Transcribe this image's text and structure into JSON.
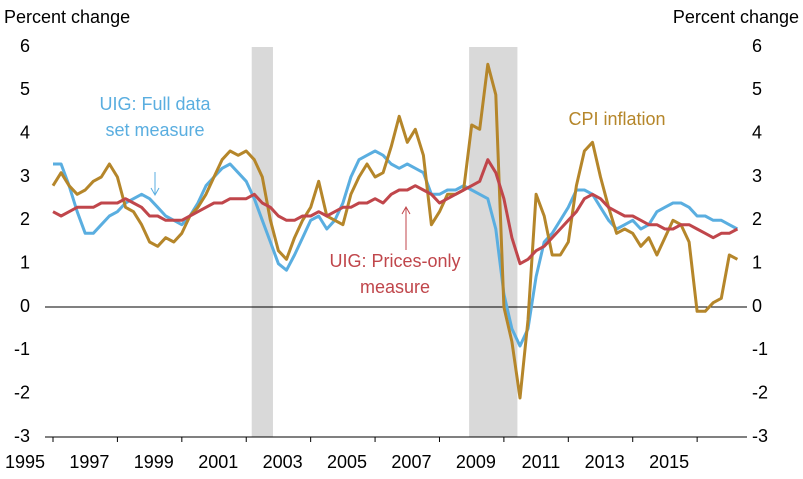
{
  "chart_data": {
    "type": "line",
    "y_axis_label": "Percent change",
    "y2_axis_label": "Percent change",
    "x": [
      1995,
      1995.25,
      1995.5,
      1995.75,
      1996,
      1996.25,
      1996.5,
      1996.75,
      1997,
      1997.25,
      1997.5,
      1997.75,
      1998,
      1998.25,
      1998.5,
      1998.75,
      1999,
      1999.25,
      1999.5,
      1999.75,
      2000,
      2000.25,
      2000.5,
      2000.75,
      2001,
      2001.25,
      2001.5,
      2001.75,
      2002,
      2002.25,
      2002.5,
      2002.75,
      2003,
      2003.25,
      2003.5,
      2003.75,
      2004,
      2004.25,
      2004.5,
      2004.75,
      2005,
      2005.25,
      2005.5,
      2005.75,
      2006,
      2006.25,
      2006.5,
      2006.75,
      2007,
      2007.25,
      2007.5,
      2007.75,
      2008,
      2008.25,
      2008.5,
      2008.75,
      2009,
      2009.25,
      2009.5,
      2009.75,
      2010,
      2010.25,
      2010.5,
      2010.75,
      2011,
      2011.25,
      2011.5,
      2011.75,
      2012,
      2012.25,
      2012.5,
      2012.75,
      2013,
      2013.25,
      2013.5,
      2013.75,
      2014,
      2014.25,
      2014.5,
      2014.75,
      2015,
      2015.25,
      2015.5,
      2015.75,
      2016,
      2016.25
    ],
    "series": [
      {
        "name": "UIG: Full data set measure",
        "color": "#5aaee0",
        "values": [
          3.3,
          3.3,
          2.8,
          2.2,
          1.7,
          1.7,
          1.9,
          2.1,
          2.2,
          2.4,
          2.5,
          2.6,
          2.5,
          2.3,
          2.1,
          2.0,
          1.9,
          2.1,
          2.4,
          2.8,
          3.0,
          3.2,
          3.3,
          3.1,
          2.9,
          2.5,
          2.0,
          1.5,
          1.0,
          0.85,
          1.2,
          1.6,
          2.0,
          2.1,
          1.8,
          2.0,
          2.4,
          3.0,
          3.4,
          3.5,
          3.6,
          3.5,
          3.3,
          3.2,
          3.3,
          3.2,
          3.1,
          2.6,
          2.6,
          2.7,
          2.7,
          2.8,
          2.7,
          2.6,
          2.5,
          1.8,
          0.3,
          -0.5,
          -0.9,
          -0.5,
          0.7,
          1.5,
          1.7,
          2.0,
          2.3,
          2.7,
          2.7,
          2.6,
          2.3,
          2.0,
          1.8,
          1.9,
          2.0,
          1.8,
          1.9,
          2.2,
          2.3,
          2.4,
          2.4,
          2.3,
          2.1,
          2.1,
          2.0,
          2.0,
          1.9,
          1.8
        ]
      },
      {
        "name": "UIG: Prices-only measure",
        "color": "#c0464b",
        "values": [
          2.2,
          2.1,
          2.2,
          2.3,
          2.3,
          2.3,
          2.4,
          2.4,
          2.4,
          2.5,
          2.4,
          2.3,
          2.1,
          2.1,
          2.0,
          2.0,
          2.0,
          2.1,
          2.2,
          2.3,
          2.4,
          2.4,
          2.5,
          2.5,
          2.5,
          2.6,
          2.4,
          2.3,
          2.1,
          2.0,
          2.0,
          2.1,
          2.1,
          2.2,
          2.1,
          2.2,
          2.3,
          2.3,
          2.4,
          2.4,
          2.5,
          2.4,
          2.6,
          2.7,
          2.7,
          2.8,
          2.7,
          2.6,
          2.4,
          2.5,
          2.6,
          2.7,
          2.8,
          2.9,
          3.4,
          3.1,
          2.5,
          1.6,
          1.0,
          1.1,
          1.3,
          1.4,
          1.6,
          1.8,
          2.0,
          2.2,
          2.5,
          2.6,
          2.5,
          2.3,
          2.2,
          2.1,
          2.1,
          2.0,
          1.9,
          1.9,
          1.8,
          1.8,
          1.9,
          1.9,
          1.8,
          1.7,
          1.6,
          1.7,
          1.7,
          1.8
        ]
      },
      {
        "name": "CPI inflation",
        "color": "#b5862a",
        "values": [
          2.8,
          3.1,
          2.8,
          2.6,
          2.7,
          2.9,
          3.0,
          3.3,
          3.0,
          2.3,
          2.2,
          1.9,
          1.5,
          1.4,
          1.6,
          1.5,
          1.7,
          2.1,
          2.3,
          2.6,
          3.0,
          3.4,
          3.6,
          3.5,
          3.6,
          3.4,
          3.0,
          2.0,
          1.3,
          1.1,
          1.6,
          2.0,
          2.3,
          2.9,
          2.1,
          2.0,
          1.9,
          2.6,
          3.0,
          3.3,
          3.0,
          3.1,
          3.7,
          4.4,
          3.8,
          4.1,
          3.5,
          1.9,
          2.2,
          2.6,
          2.6,
          2.7,
          4.2,
          4.1,
          5.6,
          4.9,
          0.0,
          -0.8,
          -2.1,
          -0.3,
          2.6,
          2.1,
          1.2,
          1.2,
          1.5,
          2.8,
          3.6,
          3.8,
          3.0,
          2.3,
          1.7,
          1.8,
          1.7,
          1.4,
          1.6,
          1.2,
          1.6,
          2.0,
          1.9,
          1.5,
          -0.1,
          -0.1,
          0.1,
          0.2,
          1.2,
          1.1
        ]
      }
    ],
    "recessions": [
      [
        2001.17,
        2001.83
      ],
      [
        2007.92,
        2009.42
      ]
    ],
    "recession_color": "#d9d9d9",
    "xlim": [
      1995,
      2016.3
    ],
    "xticks": [
      1995,
      1997,
      1999,
      2001,
      2003,
      2005,
      2007,
      2009,
      2011,
      2013,
      2015
    ],
    "ylim": [
      -3,
      6
    ],
    "yticks": [
      -3,
      -2,
      -1,
      0,
      1,
      2,
      3,
      4,
      5,
      6
    ],
    "y2lim": [
      -3,
      6
    ],
    "y2ticks": [
      -3,
      -2,
      -1,
      0,
      1,
      2,
      3,
      4,
      5,
      6
    ],
    "annotations": [
      {
        "lines": [
          "UIG: Full data",
          "set measure"
        ],
        "series": 0,
        "arrow": "down"
      },
      {
        "lines": [
          "UIG: Prices-only",
          "measure"
        ],
        "series": 1,
        "arrow": "up"
      },
      {
        "lines": [
          "CPI inflation"
        ],
        "series": 2
      }
    ]
  }
}
